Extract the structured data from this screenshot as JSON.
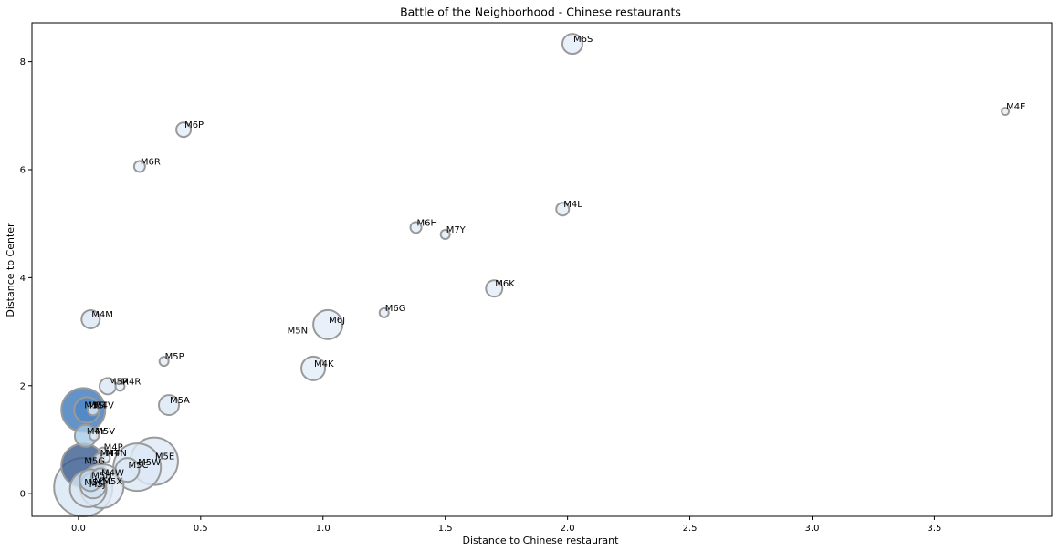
{
  "chart_data": {
    "type": "scatter",
    "title": "Battle of the Neighborhood - Chinese restaurants",
    "xlabel": "Distance to Chinese restaurant",
    "ylabel": "Distance to Center",
    "xlim": [
      -0.19,
      3.98
    ],
    "ylim": [
      -0.42,
      8.72
    ],
    "xticks": [
      0.0,
      0.5,
      1.0,
      1.5,
      2.0,
      2.5,
      3.0,
      3.5
    ],
    "xtick_labels": [
      "0.0",
      "0.5",
      "1.0",
      "1.5",
      "2.0",
      "2.5",
      "3.0",
      "3.5"
    ],
    "yticks": [
      0,
      2,
      4,
      6,
      8
    ],
    "ytick_labels": [
      "0",
      "2",
      "4",
      "6",
      "8"
    ],
    "grid": false,
    "points": [
      {
        "label": "M6S",
        "x": 2.02,
        "y": 8.33,
        "size": 11,
        "color": "#e2ecf7"
      },
      {
        "label": "M4E",
        "x": 3.79,
        "y": 7.08,
        "size": 4,
        "color": "#e2ecf7"
      },
      {
        "label": "M6P",
        "x": 0.43,
        "y": 6.74,
        "size": 8,
        "color": "#e2ecf7"
      },
      {
        "label": "M6R",
        "x": 0.25,
        "y": 6.06,
        "size": 6,
        "color": "#e2ecf7"
      },
      {
        "label": "M4L",
        "x": 1.98,
        "y": 5.27,
        "size": 7,
        "color": "#e2ecf7"
      },
      {
        "label": "M6H",
        "x": 1.38,
        "y": 4.93,
        "size": 6,
        "color": "#e2ecf7"
      },
      {
        "label": "M7Y",
        "x": 1.5,
        "y": 4.8,
        "size": 5,
        "color": "#e2ecf7"
      },
      {
        "label": "M6K",
        "x": 1.7,
        "y": 3.8,
        "size": 9,
        "color": "#e2ecf7"
      },
      {
        "label": "M6G",
        "x": 1.25,
        "y": 3.35,
        "size": 5,
        "color": "#e2ecf7"
      },
      {
        "label": "M4M",
        "x": 0.05,
        "y": 3.23,
        "size": 10,
        "color": "#dbe7f5"
      },
      {
        "label": "M6J",
        "x": 1.02,
        "y": 3.13,
        "size": 16,
        "color": "#e2ecf7"
      },
      {
        "label": "M5N",
        "x": 0.85,
        "y": 2.93,
        "size": 0,
        "color": "#e2ecf7"
      },
      {
        "label": "M5P",
        "x": 0.35,
        "y": 2.45,
        "size": 5,
        "color": "#e2ecf7"
      },
      {
        "label": "M4K",
        "x": 0.96,
        "y": 2.32,
        "size": 13,
        "color": "#e2ecf7"
      },
      {
        "label": "M5R",
        "x": 0.12,
        "y": 1.99,
        "size": 9,
        "color": "#dbe7f5"
      },
      {
        "label": "M4R",
        "x": 0.17,
        "y": 1.99,
        "size": 5,
        "color": "#e2ecf7"
      },
      {
        "label": "M5A",
        "x": 0.37,
        "y": 1.64,
        "size": 11,
        "color": "#dbe7f5"
      },
      {
        "label": "M5S",
        "x": 0.02,
        "y": 1.55,
        "size": 24,
        "color": "#3d78ba"
      },
      {
        "label": "M5T",
        "x": 0.035,
        "y": 1.55,
        "size": 14,
        "color": "#4f87c4"
      },
      {
        "label": "M4V",
        "x": 0.06,
        "y": 1.55,
        "size": 6,
        "color": "#e2ecf7"
      },
      {
        "label": "M4Y",
        "x": 0.03,
        "y": 1.07,
        "size": 12,
        "color": "#a8cbe4"
      },
      {
        "label": "M5V",
        "x": 0.065,
        "y": 1.07,
        "size": 5,
        "color": "#e2ecf7"
      },
      {
        "label": "M4P",
        "x": 0.1,
        "y": 0.77,
        "size": 5,
        "color": "#e2ecf7"
      },
      {
        "label": "M4T",
        "x": 0.085,
        "y": 0.66,
        "size": 5,
        "color": "#e2ecf7"
      },
      {
        "label": "M4N",
        "x": 0.11,
        "y": 0.66,
        "size": 5,
        "color": "#e2ecf7"
      },
      {
        "label": "M5E",
        "x": 0.31,
        "y": 0.6,
        "size": 26,
        "color": "#dfe9f6"
      },
      {
        "label": "M5G",
        "x": 0.02,
        "y": 0.52,
        "size": 24,
        "color": "#3a5d8f"
      },
      {
        "label": "M5W",
        "x": 0.24,
        "y": 0.49,
        "size": 26,
        "color": "#dbe7f5"
      },
      {
        "label": "M5C",
        "x": 0.2,
        "y": 0.44,
        "size": 13,
        "color": "#dbe7f5"
      },
      {
        "label": "M4W",
        "x": 0.09,
        "y": 0.3,
        "size": 10,
        "color": "#c9dcef"
      },
      {
        "label": "M5H",
        "x": 0.05,
        "y": 0.25,
        "size": 12,
        "color": "#bcd5ec"
      },
      {
        "label": "M5L",
        "x": 0.06,
        "y": 0.15,
        "size": 14,
        "color": "#cde0f1"
      },
      {
        "label": "M5K",
        "x": 0.02,
        "y": 0.12,
        "size": 32,
        "color": "#d7e6f4"
      },
      {
        "label": "M5J",
        "x": 0.04,
        "y": 0.09,
        "size": 20,
        "color": "#dae7f4"
      },
      {
        "label": "M5X",
        "x": 0.095,
        "y": 0.14,
        "size": 24,
        "color": "#dfe9f6"
      }
    ],
    "point_stroke": "#9a9a9a"
  }
}
